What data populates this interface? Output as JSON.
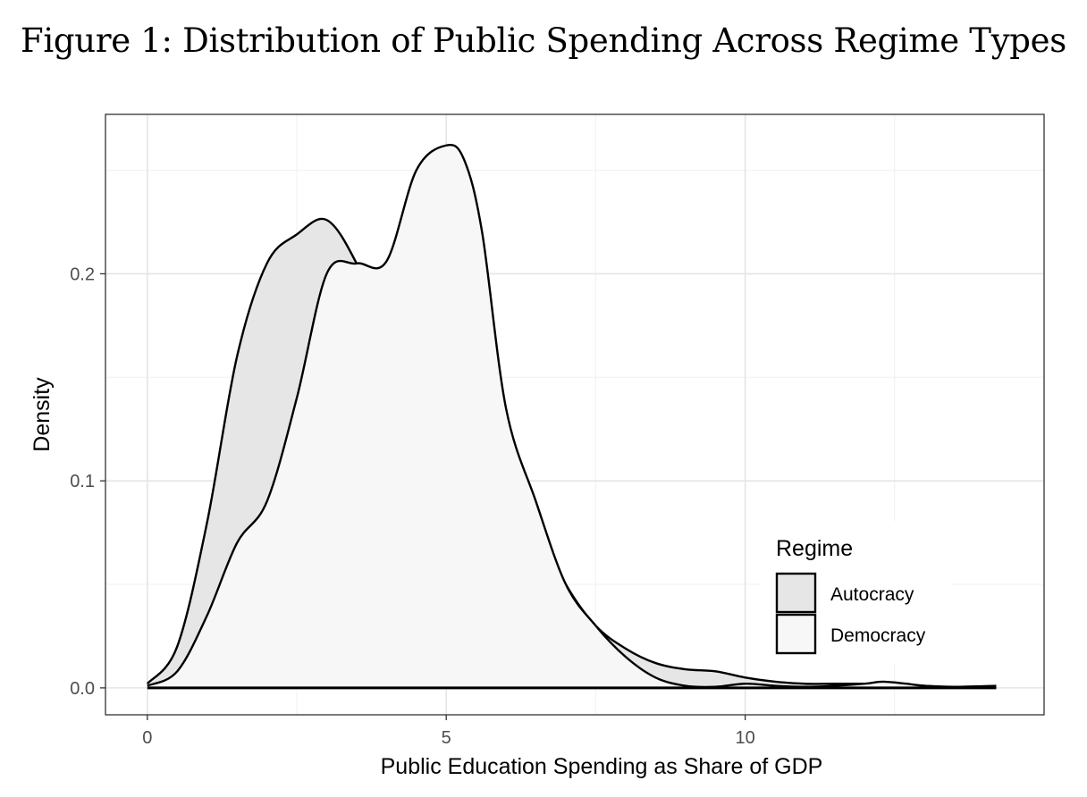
{
  "figure_title": "Figure 1: Distribution of Public Spending Across Regime Types",
  "chart_data": {
    "type": "area",
    "subtype": "density",
    "title": "Figure 1: Distribution of Public Spending Across Regime Types",
    "xlabel": "Public Education Spending as Share of GDP",
    "ylabel": "Density",
    "xlim": [
      -0.7,
      15
    ],
    "ylim": [
      -0.013,
      0.277
    ],
    "x_ticks": [
      0,
      5,
      10
    ],
    "x_tick_labels": [
      "0",
      "5",
      "10"
    ],
    "y_ticks": [
      0.0,
      0.1,
      0.2
    ],
    "y_tick_labels": [
      "0.0",
      "0.1",
      "0.2"
    ],
    "grid": true,
    "legend": {
      "title": "Regime",
      "position": "bottom-right",
      "entries": [
        "Autocracy",
        "Democracy"
      ]
    },
    "series": [
      {
        "name": "Autocracy",
        "fill": "#e6e6e6",
        "x": [
          0,
          0.5,
          1,
          1.5,
          2,
          2.5,
          3,
          3.5,
          4,
          4.5,
          5,
          5.5,
          6,
          6.5,
          7,
          7.5,
          8,
          8.5,
          9,
          9.5,
          10,
          10.5,
          11,
          11.5,
          12,
          12.5,
          13,
          13.5,
          14.2
        ],
        "y": [
          0.002,
          0.02,
          0.08,
          0.16,
          0.205,
          0.219,
          0.226,
          0.205,
          0.17,
          0.14,
          0.132,
          0.128,
          0.11,
          0.08,
          0.05,
          0.03,
          0.019,
          0.012,
          0.009,
          0.008,
          0.005,
          0.003,
          0.002,
          0.002,
          0.002,
          0.002,
          0.001,
          0.0005,
          0.001
        ]
      },
      {
        "name": "Democracy",
        "fill": "#f7f7f7",
        "x": [
          0,
          0.5,
          1,
          1.5,
          2,
          2.5,
          3,
          3.5,
          4,
          4.5,
          5,
          5.3,
          5.6,
          6,
          6.5,
          7,
          7.5,
          8,
          8.5,
          9,
          9.5,
          10,
          10.5,
          11,
          11.5,
          12,
          12.3,
          12.7,
          13,
          13.5,
          14.2
        ],
        "y": [
          0.001,
          0.008,
          0.035,
          0.07,
          0.09,
          0.14,
          0.2,
          0.205,
          0.206,
          0.25,
          0.262,
          0.255,
          0.22,
          0.135,
          0.09,
          0.05,
          0.03,
          0.015,
          0.005,
          0.001,
          0.0005,
          0.002,
          0.001,
          0.0005,
          0.001,
          0.002,
          0.003,
          0.002,
          0.001,
          0.0005,
          0.0005
        ]
      }
    ]
  }
}
